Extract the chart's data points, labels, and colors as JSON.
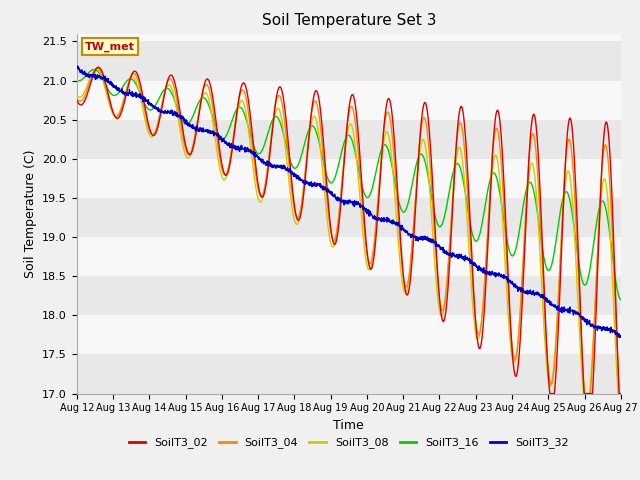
{
  "title": "Soil Temperature Set 3",
  "xlabel": "Time",
  "ylabel": "Soil Temperature (C)",
  "ylim": [
    17.0,
    21.6
  ],
  "n_days": 15,
  "x_tick_labels": [
    "Aug 12",
    "Aug 13",
    "Aug 14",
    "Aug 15",
    "Aug 16",
    "Aug 17",
    "Aug 18",
    "Aug 19",
    "Aug 20",
    "Aug 21",
    "Aug 22",
    "Aug 23",
    "Aug 24",
    "Aug 25",
    "Aug 26",
    "Aug 27"
  ],
  "annotation": "TW_met",
  "fig_bg": "#f0f0f0",
  "plot_bg": "#ffffff",
  "band_colors": [
    "#e8e8e8",
    "#f8f8f8"
  ],
  "line_colors": {
    "SoilT3_02": "#dd0000",
    "SoilT3_04": "#ff8800",
    "SoilT3_08": "#cccc00",
    "SoilT3_16": "#00cc00",
    "SoilT3_32": "#0000cc"
  },
  "legend_entries": [
    "SoilT3_02",
    "SoilT3_04",
    "SoilT3_08",
    "SoilT3_16",
    "SoilT3_32"
  ]
}
